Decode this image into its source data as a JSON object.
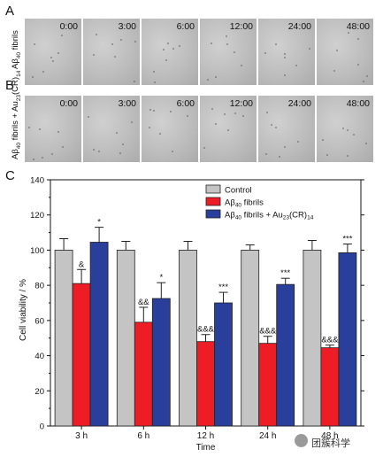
{
  "panels": {
    "a": {
      "letter": "A",
      "label_main": "Aβ",
      "label_sub": "40",
      "label_rest": " fibrils",
      "times": [
        "0:00",
        "3:00",
        "6:00",
        "12:00",
        "24:00",
        "48:00"
      ]
    },
    "b": {
      "letter": "B",
      "label_main": "Aβ",
      "label_sub": "40",
      "label_rest": " fibrils + Au",
      "label_sub2": "23",
      "label_rest2": "(CR)",
      "label_sub3": "14",
      "times": [
        "0:00",
        "3:00",
        "6:00",
        "12:00",
        "24:00",
        "48:00"
      ]
    },
    "c": {
      "letter": "C"
    }
  },
  "chart_data": {
    "type": "bar",
    "xlabel": "Time",
    "ylabel": "Cell viability / %",
    "ylim": [
      0,
      140
    ],
    "yticks": [
      0,
      20,
      40,
      60,
      80,
      100,
      120,
      140
    ],
    "categories": [
      "3 h",
      "6 h",
      "12 h",
      "24 h",
      "48 h"
    ],
    "legend_position": "top-right",
    "series": [
      {
        "name": "Control",
        "color": "#c4c4c4",
        "values": [
          100,
          100,
          100,
          100,
          100
        ],
        "errors": [
          6.5,
          5,
          5,
          3,
          5.5
        ],
        "annotations": [
          "",
          "",
          "",
          "",
          ""
        ]
      },
      {
        "name": "Aβ40 fibrils",
        "name_parts": [
          "Aβ",
          "40",
          " fibrils"
        ],
        "color": "#ee1c24",
        "values": [
          81,
          59,
          48,
          47,
          44.5
        ],
        "errors": [
          8,
          8.5,
          4,
          4,
          1.5
        ],
        "annotations": [
          "&",
          "&&",
          "&&&",
          "&&&",
          "&&&"
        ]
      },
      {
        "name": "Aβ40 fibrils + Au23(CR)14",
        "name_parts": [
          "Aβ",
          "40",
          " fibrils + Au",
          "23",
          "(CR)",
          "14"
        ],
        "color": "#2a3e9c",
        "values": [
          104.5,
          72.5,
          70,
          80.5,
          98.5
        ],
        "errors": [
          8.5,
          9,
          6,
          3.5,
          5
        ],
        "annotations": [
          "*",
          "*",
          "***",
          "***",
          "***"
        ]
      }
    ]
  },
  "watermark": {
    "text": "团簇科学"
  }
}
